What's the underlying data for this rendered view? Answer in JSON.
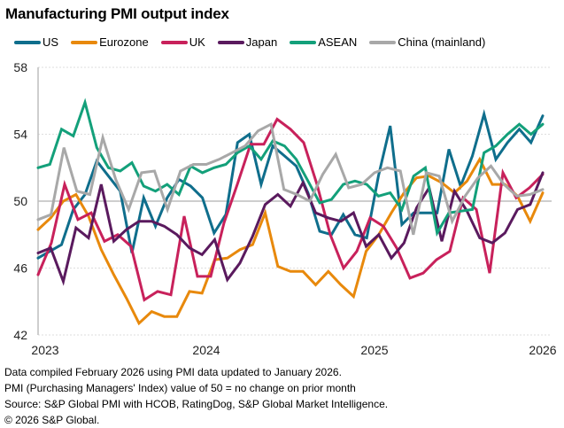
{
  "chart_data": {
    "type": "line",
    "title": "Manufacturing PMI output index",
    "xlabel": "",
    "ylabel": "",
    "ylim": [
      42,
      58
    ],
    "yticks": [
      42,
      46,
      50,
      54,
      58
    ],
    "xtick_labels": [
      "2023",
      "2024",
      "2025",
      "2026"
    ],
    "x_start": "Jan 2023",
    "x_end": "Jan 2026",
    "grid": true,
    "legend_position": "top",
    "reference_line": 50,
    "series": [
      {
        "name": "US",
        "color": "#0f6e8c",
        "values": [
          46.6,
          47.0,
          47.4,
          49.5,
          50.4,
          52.4,
          51.5,
          50.6,
          46.9,
          50.2,
          48.5,
          50.2,
          51.3,
          50.9,
          50.2,
          48.1,
          49.2,
          53.5,
          54.0,
          51.0,
          53.3,
          52.7,
          52.1,
          50.5,
          48.2,
          48.0,
          49.2,
          48.0,
          47.8,
          51.5,
          54.5,
          48.6,
          49.3,
          49.3,
          49.3,
          53.1,
          50.9,
          52.7,
          55.2,
          52.5,
          53.5,
          54.3,
          53.5,
          55.1
        ]
      },
      {
        "name": "Eurozone",
        "color": "#e8890c",
        "values": [
          48.3,
          49.0,
          50.0,
          50.4,
          49.1,
          47.1,
          45.6,
          44.2,
          42.7,
          43.4,
          43.1,
          43.1,
          44.6,
          44.5,
          46.5,
          46.6,
          47.1,
          47.4,
          49.3,
          46.1,
          45.8,
          45.8,
          45.0,
          45.8,
          45.0,
          44.3,
          47.0,
          48.0,
          49.3,
          50.5,
          51.4,
          51.5,
          51.1,
          50.5,
          51.2,
          52.5,
          51.0,
          51.0,
          50.3,
          48.8,
          50.5
        ]
      },
      {
        "name": "UK",
        "color": "#c8215b",
        "values": [
          45.6,
          47.5,
          51.0,
          48.9,
          49.3,
          47.6,
          48.0,
          47.3,
          44.1,
          44.6,
          44.4,
          49.1,
          45.5,
          45.5,
          48.7,
          51.0,
          53.4,
          53.4,
          54.9,
          54.3,
          53.5,
          51.0,
          48.0,
          46.0,
          47.0,
          49.0,
          48.5,
          47.2,
          45.4,
          45.7,
          46.5,
          47.0,
          50.2,
          49.5,
          45.7,
          51.7,
          50.2,
          50.8,
          51.6
        ]
      },
      {
        "name": "Japan",
        "color": "#5a1a5e",
        "values": [
          46.9,
          47.2,
          45.2,
          48.4,
          47.8,
          51.0,
          47.6,
          48.3,
          48.8,
          48.8,
          48.5,
          48.0,
          47.2,
          46.8,
          47.7,
          45.3,
          46.3,
          47.9,
          49.8,
          50.4,
          49.7,
          51.1,
          49.3,
          49.0,
          48.8,
          49.3,
          47.3,
          48.0,
          46.6,
          47.5,
          49.6,
          50.8,
          47.6,
          50.6,
          49.4,
          47.8,
          47.5,
          48.1,
          49.5,
          49.8,
          51.7
        ]
      },
      {
        "name": "ASEAN",
        "color": "#13a07a",
        "values": [
          52.0,
          52.2,
          54.3,
          53.9,
          55.9,
          53.2,
          52.0,
          51.8,
          52.3,
          50.9,
          50.6,
          51.0,
          50.4,
          52.1,
          51.7,
          52.0,
          52.2,
          52.9,
          53.3,
          52.5,
          53.6,
          53.3,
          52.5,
          51.2,
          49.9,
          50.1,
          51.0,
          51.2,
          51.0,
          50.3,
          50.5,
          49.5,
          51.5,
          52.0,
          48.1,
          49.3,
          49.4,
          49.5,
          52.9,
          53.3,
          54.0,
          54.6,
          54.0,
          54.6
        ]
      },
      {
        "name": "China (mainland)",
        "color": "#a8a8a8",
        "values": [
          48.9,
          49.2,
          53.2,
          50.6,
          50.4,
          53.8,
          51.3,
          49.5,
          51.7,
          51.8,
          49.5,
          51.8,
          52.2,
          52.2,
          52.5,
          52.9,
          53.3,
          54.2,
          54.6,
          50.7,
          50.4,
          50.0,
          51.6,
          52.8,
          50.8,
          51.0,
          51.7,
          52.0,
          51.8,
          48.0,
          51.7,
          51.5,
          48.8,
          50.3,
          51.4,
          52.1,
          51.0,
          50.3,
          50.4,
          50.7
        ]
      }
    ]
  },
  "notes": [
    "Data compiled February 2026 using PMI data updated to January 2026.",
    "PMI (Purchasing Managers' Index) value of 50 = no change on prior month",
    "Source: S&P Global PMI with HCOB, RatingDog, S&P Global Market Intelligence.",
    "© 2026 S&P Global."
  ]
}
